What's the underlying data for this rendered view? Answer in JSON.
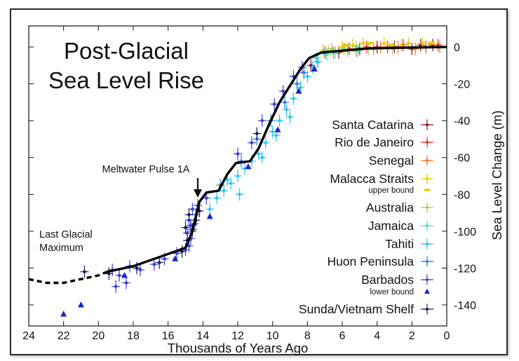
{
  "chart_data": {
    "type": "scatter",
    "title_line1": "Post-Glacial",
    "title_line2": "Sea Level Rise",
    "xlabel": "Thousands of Years Ago",
    "ylabel": "Sea Level Change (m)",
    "xlim": [
      24,
      0
    ],
    "ylim": [
      -150,
      5
    ],
    "x_ticks": [
      24,
      22,
      20,
      18,
      16,
      14,
      12,
      10,
      8,
      6,
      4,
      2,
      0
    ],
    "y_ticks": [
      0,
      -20,
      -40,
      -60,
      -80,
      -100,
      -120,
      -140
    ],
    "legend_position": "right",
    "annotations": {
      "mwp": "Meltwater Pulse 1A",
      "lgm_line1": "Last Glacial",
      "lgm_line2": "Maximum"
    },
    "curve": {
      "solid": [
        [
          19.5,
          -122
        ],
        [
          18,
          -119
        ],
        [
          16.5,
          -114
        ],
        [
          15,
          -109
        ],
        [
          14.6,
          -100
        ],
        [
          14.2,
          -84
        ],
        [
          13.8,
          -79
        ],
        [
          13.1,
          -78
        ],
        [
          12.6,
          -69
        ],
        [
          12.1,
          -63
        ],
        [
          11.3,
          -62
        ],
        [
          10.8,
          -55
        ],
        [
          10.2,
          -42
        ],
        [
          9.6,
          -30
        ],
        [
          9.0,
          -21
        ],
        [
          8.4,
          -12
        ],
        [
          7.9,
          -6
        ],
        [
          7.2,
          -3
        ],
        [
          6.0,
          -2
        ],
        [
          4.5,
          -0.8
        ],
        [
          2.0,
          -0.3
        ],
        [
          0,
          0
        ]
      ],
      "dashed": [
        [
          24,
          -126
        ],
        [
          23,
          -128
        ],
        [
          22,
          -128
        ],
        [
          21,
          -126
        ],
        [
          20,
          -124
        ],
        [
          19.5,
          -122
        ]
      ]
    },
    "series": [
      {
        "name": "Santa Catarina",
        "color": "#8b1a1a",
        "marker": "cross",
        "points": [
          [
            7.8,
            -10
          ],
          [
            7.4,
            -8
          ],
          [
            6.2,
            -3
          ],
          [
            5.0,
            -1
          ],
          [
            4.0,
            0
          ],
          [
            3.0,
            0
          ],
          [
            2.0,
            -1
          ],
          [
            1.5,
            1
          ],
          [
            0.8,
            1
          ]
        ]
      },
      {
        "name": "Rio de Janeiro",
        "color": "#e0302a",
        "marker": "cross",
        "points": [
          [
            7.0,
            -3
          ],
          [
            5.6,
            -1
          ],
          [
            4.6,
            0
          ],
          [
            3.4,
            0
          ],
          [
            2.5,
            1
          ],
          [
            1.2,
            0
          ],
          [
            0.5,
            1
          ]
        ]
      },
      {
        "name": "Senegal",
        "color": "#f07a1a",
        "marker": "cross",
        "points": [
          [
            6.5,
            -3
          ],
          [
            5.2,
            -2
          ],
          [
            4.2,
            -1
          ],
          [
            3.8,
            0
          ],
          [
            2.8,
            0
          ],
          [
            1.8,
            -1
          ],
          [
            0.4,
            0
          ]
        ]
      },
      {
        "name": "Malacca Straits",
        "color": "#f5c400",
        "marker": "cross",
        "points": [
          [
            6.8,
            -2
          ],
          [
            6.0,
            0
          ],
          [
            5.4,
            1
          ],
          [
            4.8,
            2
          ],
          [
            3.6,
            2
          ],
          [
            2.6,
            1
          ],
          [
            2.2,
            2
          ],
          [
            1.4,
            2
          ]
        ]
      },
      {
        "name": "upper bound",
        "color": "#f5c400",
        "marker": "bar",
        "points": [
          [
            5.8,
            1
          ],
          [
            4.4,
            2
          ],
          [
            3.2,
            1
          ],
          [
            0.9,
            2
          ]
        ]
      },
      {
        "name": "Australia",
        "color": "#99d24a",
        "marker": "cross",
        "points": [
          [
            7.1,
            -2
          ],
          [
            6.6,
            -1
          ],
          [
            5.9,
            -1
          ],
          [
            5.2,
            0
          ],
          [
            4.5,
            -1
          ],
          [
            3.1,
            -1
          ]
        ]
      },
      {
        "name": "Jamaica",
        "color": "#3fe0c0",
        "marker": "cross",
        "points": [
          [
            7.5,
            -6
          ],
          [
            6.9,
            -4
          ],
          [
            6.4,
            -3
          ],
          [
            5.7,
            -2
          ],
          [
            5.1,
            -2
          ]
        ]
      },
      {
        "name": "Tahiti",
        "color": "#29c6f2",
        "marker": "cross",
        "points": [
          [
            13.6,
            -88
          ],
          [
            13.2,
            -82
          ],
          [
            12.8,
            -78
          ],
          [
            12.4,
            -74
          ],
          [
            12.0,
            -70
          ],
          [
            11.6,
            -66
          ],
          [
            11.2,
            -62
          ],
          [
            10.8,
            -58
          ],
          [
            10.4,
            -52
          ],
          [
            10.0,
            -46
          ],
          [
            9.6,
            -40
          ],
          [
            9.2,
            -34
          ],
          [
            8.8,
            -28
          ],
          [
            8.4,
            -22
          ],
          [
            8.0,
            -16
          ],
          [
            7.7,
            -11
          ],
          [
            7.4,
            -8
          ],
          [
            11.9,
            -80
          ],
          [
            12.6,
            -72
          ],
          [
            10.6,
            -60
          ],
          [
            9.8,
            -48
          ],
          [
            9.0,
            -38
          ]
        ]
      },
      {
        "name": "Huon Peninsula",
        "color": "#2b7ee0",
        "marker": "cross",
        "points": [
          [
            13.0,
            -75
          ],
          [
            11.8,
            -62
          ],
          [
            10.9,
            -50
          ],
          [
            10.1,
            -40
          ],
          [
            9.3,
            -30
          ],
          [
            8.6,
            -20
          ],
          [
            8.2,
            -14
          ]
        ]
      },
      {
        "name": "Barbados",
        "color": "#3a3fd6",
        "marker": "cross",
        "points": [
          [
            19.2,
            -121
          ],
          [
            18.8,
            -124
          ],
          [
            18.2,
            -119
          ],
          [
            17.6,
            -121
          ],
          [
            16.8,
            -118
          ],
          [
            16.2,
            -115
          ],
          [
            15.5,
            -112
          ],
          [
            15.0,
            -110
          ],
          [
            14.8,
            -108
          ],
          [
            14.7,
            -104
          ],
          [
            14.6,
            -100
          ],
          [
            14.5,
            -96
          ],
          [
            14.8,
            -94
          ],
          [
            14.4,
            -91
          ],
          [
            14.6,
            -88
          ],
          [
            14.3,
            -86
          ],
          [
            14.7,
            -97
          ],
          [
            14.9,
            -101
          ],
          [
            13.8,
            -82
          ],
          [
            12.0,
            -58
          ],
          [
            11.2,
            -52
          ],
          [
            10.6,
            -40
          ],
          [
            9.9,
            -31
          ],
          [
            9.4,
            -24
          ],
          [
            8.8,
            -16
          ],
          [
            8.3,
            -11
          ],
          [
            19.0,
            -130
          ],
          [
            18.4,
            -128
          ]
        ]
      },
      {
        "name": "lower bound",
        "color": "#1a23c4",
        "marker": "triangle",
        "points": [
          [
            22.0,
            -145
          ],
          [
            21.0,
            -140
          ],
          [
            18.5,
            -124
          ],
          [
            15.6,
            -115
          ],
          [
            13.6,
            -92
          ],
          [
            11.4,
            -65
          ],
          [
            9.7,
            -45
          ],
          [
            8.5,
            -24
          ],
          [
            7.6,
            -12
          ]
        ]
      },
      {
        "name": "Sunda/Vietnam Shelf",
        "color": "#1a1a5e",
        "marker": "cross",
        "points": [
          [
            20.8,
            -122
          ],
          [
            19.4,
            -123
          ],
          [
            17.8,
            -120
          ],
          [
            16.5,
            -117
          ],
          [
            15.2,
            -111
          ],
          [
            14.9,
            -105
          ],
          [
            14.6,
            -99
          ],
          [
            14.4,
            -94
          ],
          [
            14.8,
            -91
          ],
          [
            15.0,
            -98
          ],
          [
            14.2,
            -89
          ],
          [
            10.9,
            -47
          ]
        ]
      }
    ]
  }
}
